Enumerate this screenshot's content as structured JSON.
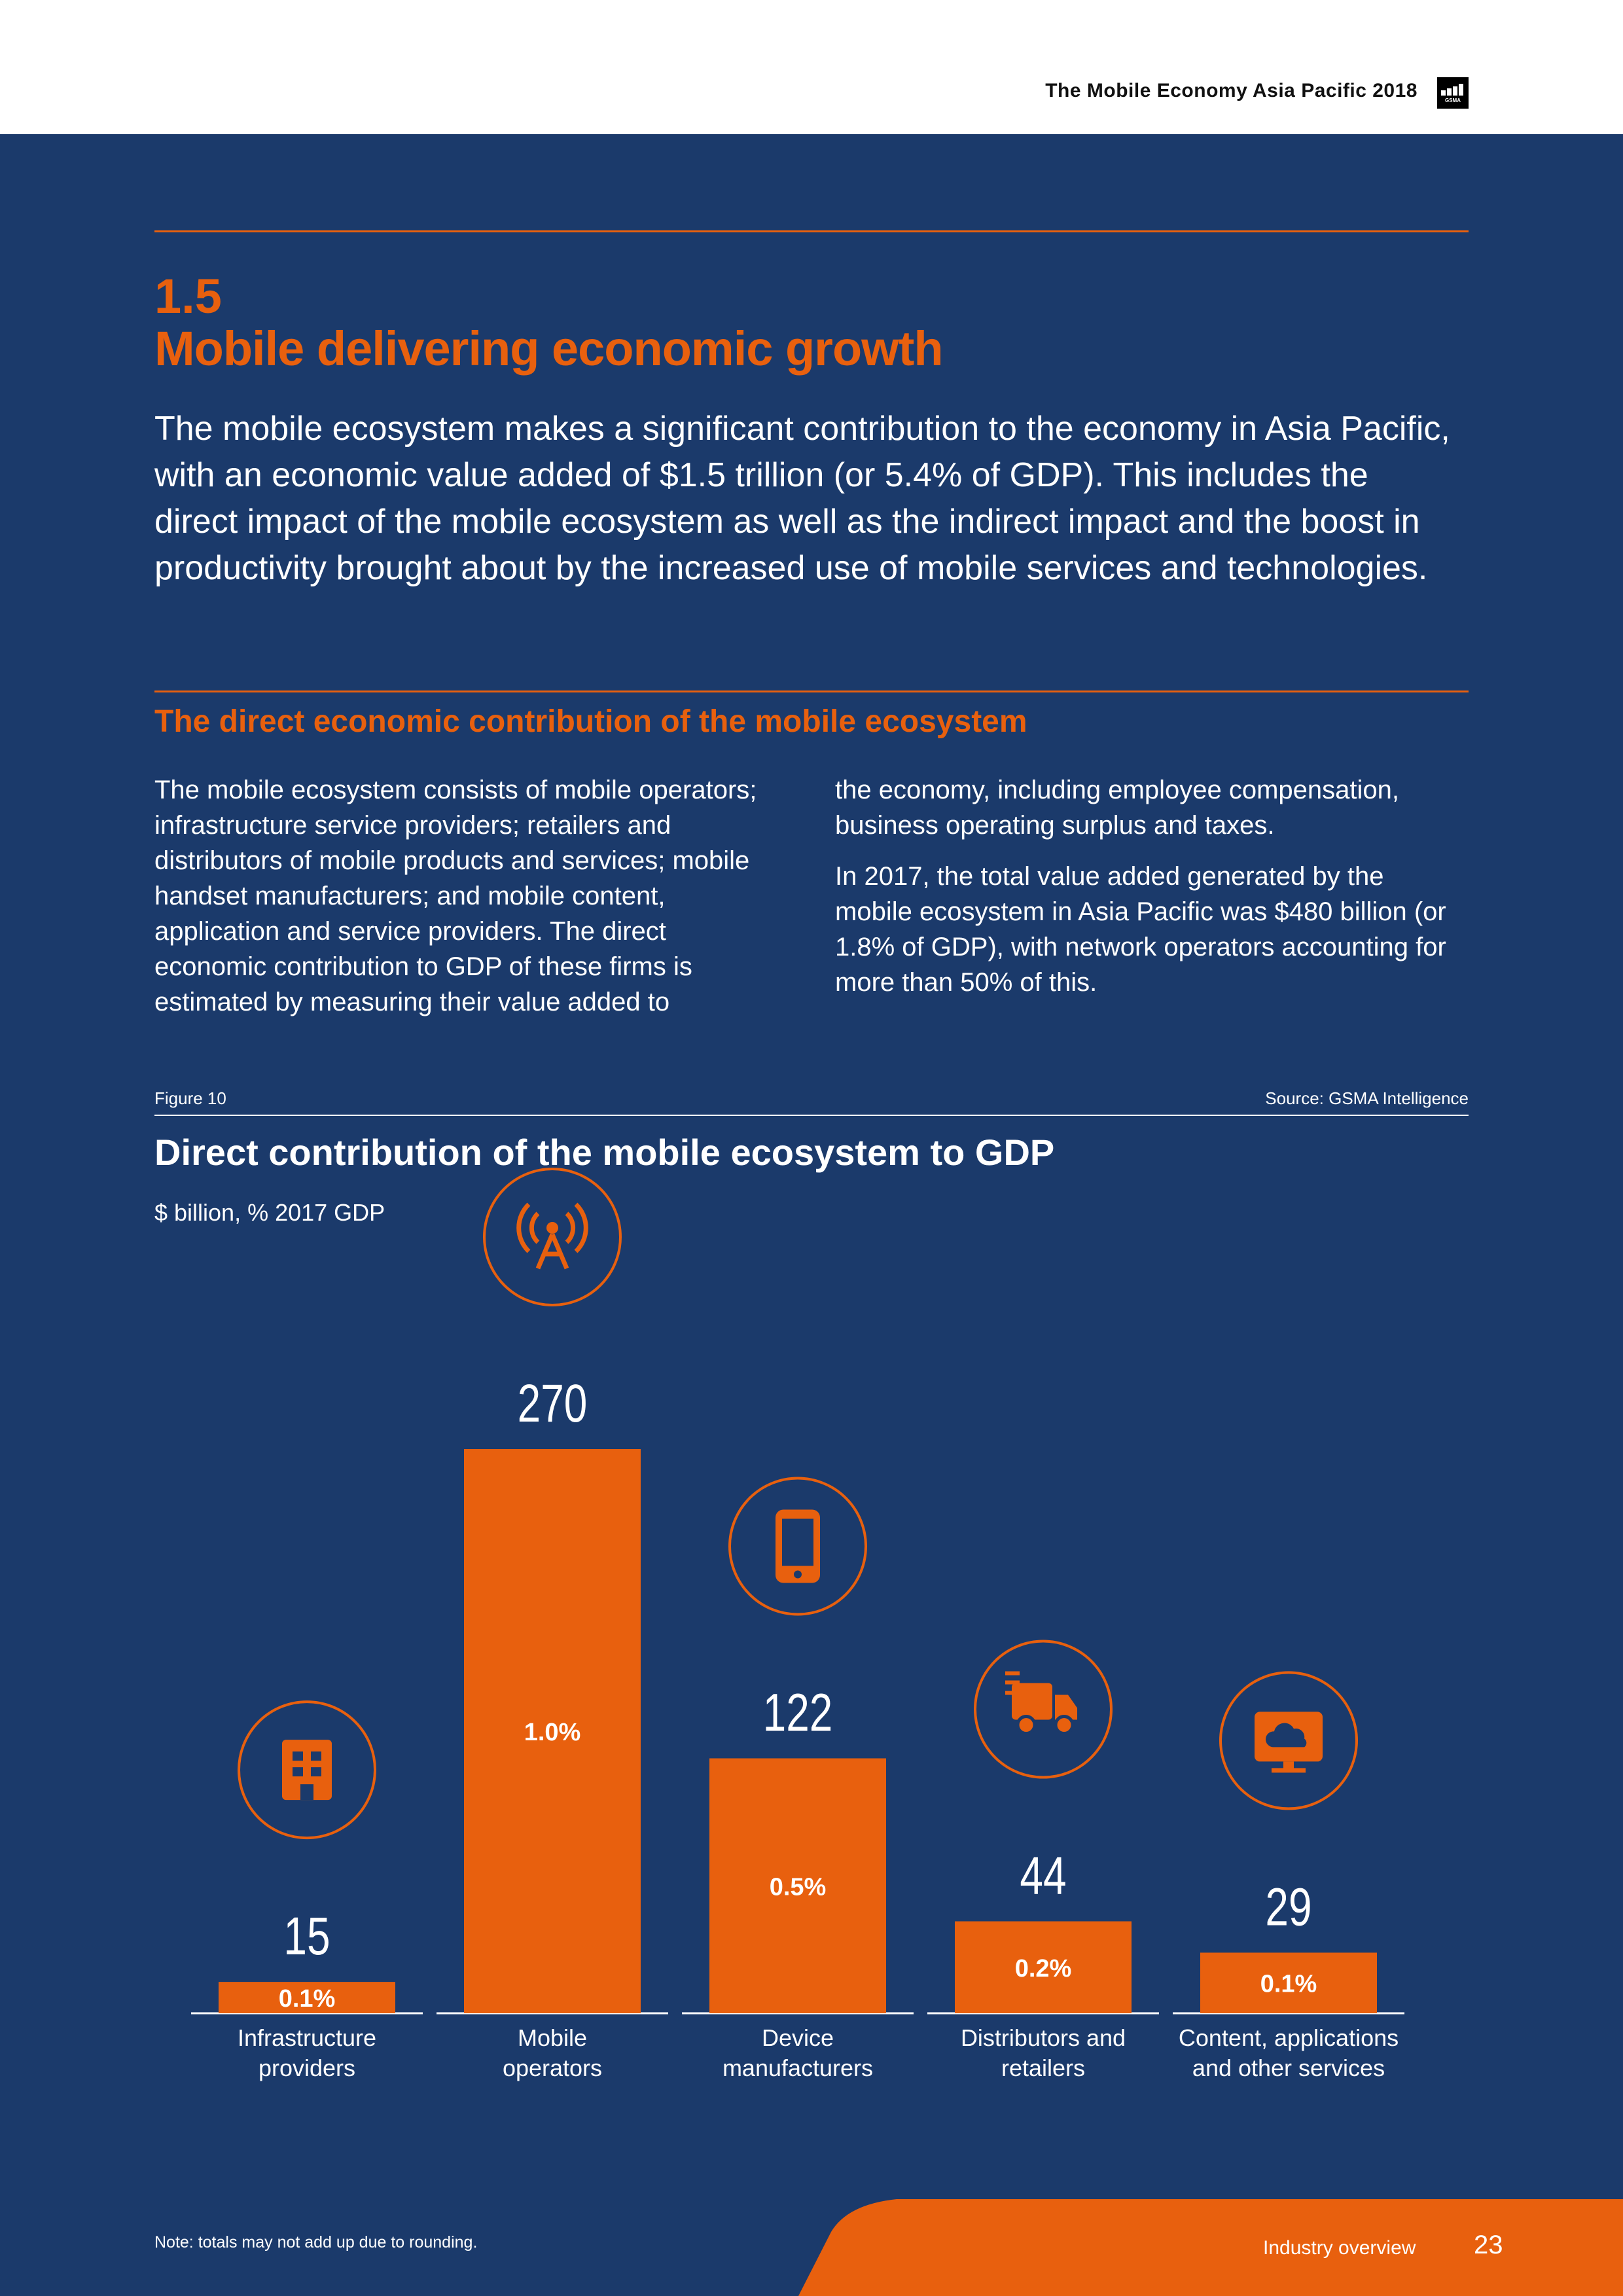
{
  "header": {
    "publication_title": "The Mobile Economy Asia Pacific 2018",
    "logo_text": "GSMA"
  },
  "section": {
    "number": "1.5",
    "title": "Mobile delivering economic growth",
    "lead": "The mobile ecosystem makes a significant contribution to the economy in Asia Pacific, with an economic value added of $1.5 trillion (or 5.4% of GDP). This includes the direct impact of the mobile ecosystem as well as the indirect impact and the boost in productivity brought about by the increased use of mobile services and technologies.",
    "subheading": "The direct economic contribution of the mobile ecosystem",
    "col1_p1": "The mobile ecosystem consists of mobile operators; infrastructure service providers; retailers and distributors of mobile products and services; mobile handset manufacturers; and mobile content, application and service providers. The direct economic contribution to GDP of these firms is estimated by measuring their value added to",
    "col2_p1": "the economy, including employee compensation, business operating surplus and taxes.",
    "col2_p2": "In 2017, the total value added generated by the mobile ecosystem in Asia Pacific was $480 billion (or 1.8% of GDP), with network operators accounting for more than 50% of this."
  },
  "figure": {
    "label": "Figure 10",
    "source": "Source: GSMA Intelligence"
  },
  "chart_data": {
    "type": "bar",
    "title": "Direct contribution of the mobile ecosystem to GDP",
    "subtitle": "$ billion, % 2017 GDP",
    "categories": [
      "Infrastructure providers",
      "Mobile operators",
      "Device manufacturers",
      "Distributors and retailers",
      "Content, applications and other services"
    ],
    "category_lines": [
      [
        "Infrastructure",
        "providers"
      ],
      [
        "Mobile",
        "operators"
      ],
      [
        "Device",
        "manufacturers"
      ],
      [
        "Distributors and",
        "retailers"
      ],
      [
        "Content, applications",
        "and other services"
      ]
    ],
    "values": [
      15,
      270,
      122,
      44,
      29
    ],
    "value_labels": [
      "15",
      "270",
      "122",
      "44",
      "29"
    ],
    "gdp_share": [
      "0.1%",
      "1.0%",
      "0.5%",
      "0.2%",
      "0.1%"
    ],
    "icons": [
      "building-icon",
      "radio-tower-icon",
      "smartphone-icon",
      "delivery-truck-icon",
      "cloud-monitor-icon"
    ],
    "xlabel": "",
    "ylabel": "$ billion",
    "ylim": [
      0,
      270
    ]
  },
  "colors": {
    "background": "#1b3a6b",
    "accent": "#e8600e",
    "text": "#ffffff"
  },
  "footer": {
    "note": "Note: totals may not add up due to rounding.",
    "section": "Industry overview",
    "page": "23"
  }
}
